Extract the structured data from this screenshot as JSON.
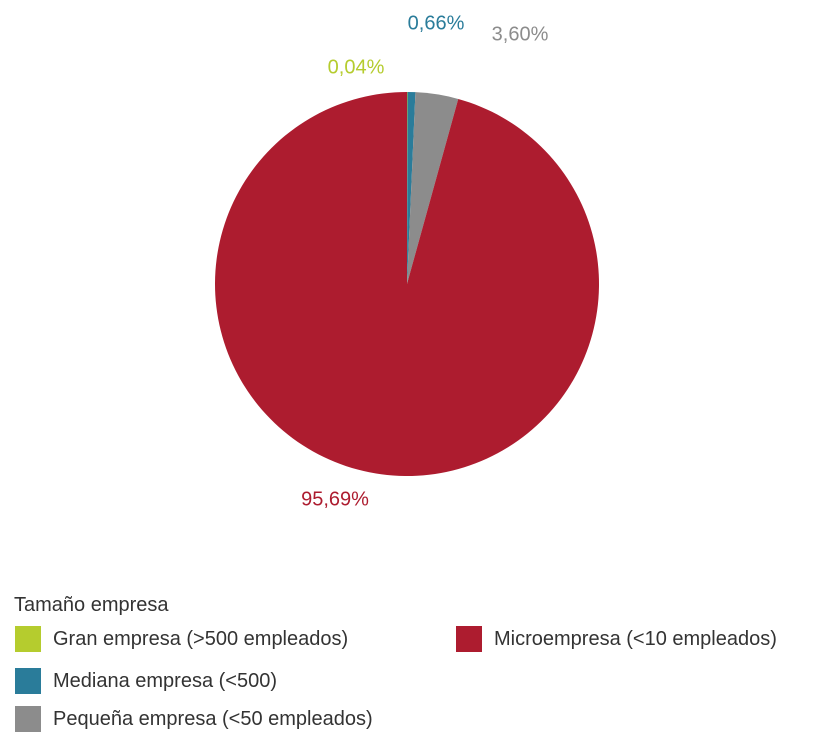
{
  "chart_data": {
    "type": "pie",
    "categories": [
      "Gran empresa (>500 empleados)",
      "Mediana empresa (<500)",
      "Pequeña empresa (<50 empleados)",
      "Microempresa (<10 empleados)"
    ],
    "values": [
      0.04,
      0.66,
      3.6,
      95.69
    ],
    "data_labels": [
      "0,04%",
      "0,66%",
      "3,60%",
      "95,69%"
    ],
    "colors": [
      "#b5cc2e",
      "#2a7c9a",
      "#8c8c8c",
      "#ad1c2f"
    ],
    "legend_title": "Tamaño empresa",
    "legend_placement": "bottom",
    "start_angle_deg": 0,
    "direction": "clockwise"
  }
}
